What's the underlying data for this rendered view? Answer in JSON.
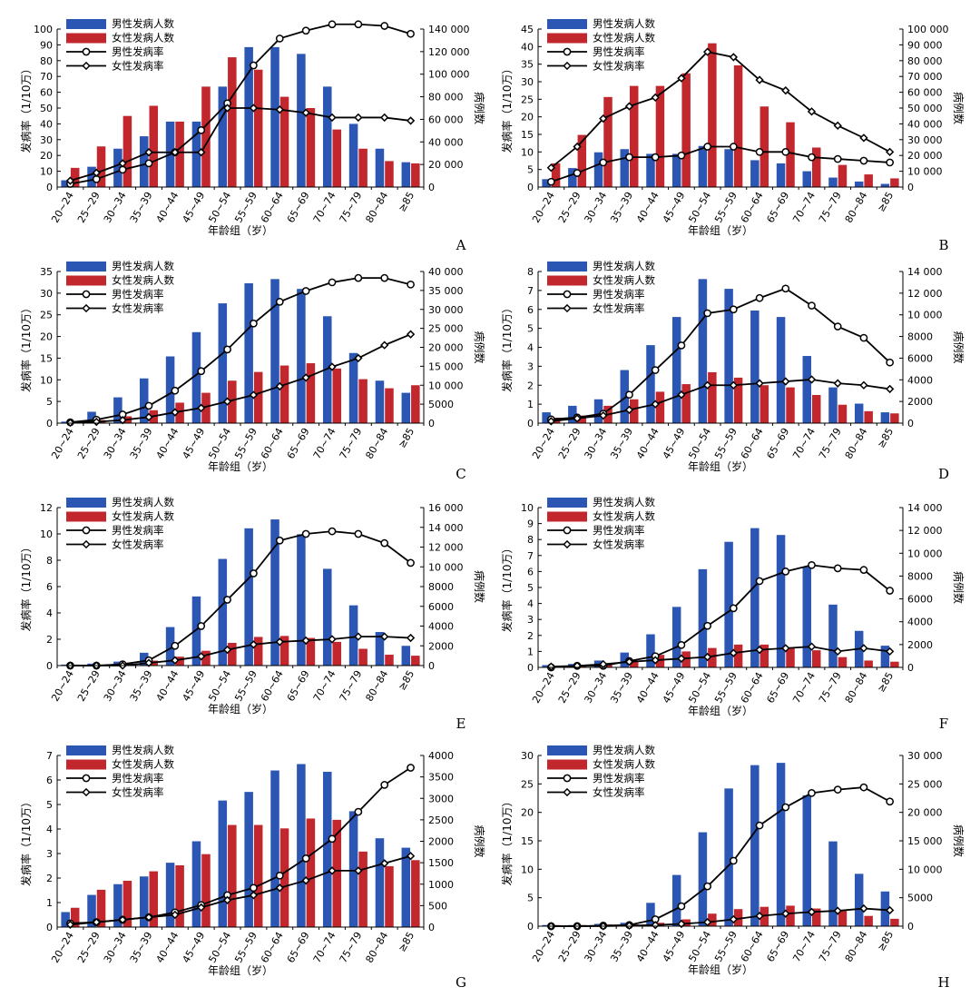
{
  "chart_data": [
    {
      "panel": "A",
      "type": "bar+line",
      "categories": [
        "20~24",
        "25~29",
        "30~34",
        "35~39",
        "40~44",
        "45~49",
        "50~54",
        "55~59",
        "60~64",
        "65~69",
        "70~74",
        "75~79",
        "80~84",
        "≥85"
      ],
      "xlabel": "年龄组（岁）",
      "ylabel": "发病率（1/10万）",
      "y2label": "病例数",
      "ylim": [
        0,
        100
      ],
      "yticks": [
        "0",
        "10",
        "20",
        "30",
        "40",
        "50",
        "60",
        "70",
        "80",
        "90",
        "100"
      ],
      "y2lim": [
        0,
        140000
      ],
      "y2ticks": [
        "0",
        "20 000",
        "40 000",
        "60 000",
        "80 000",
        "100 000",
        "120 000",
        "140 000"
      ],
      "series": [
        {
          "name": "男性发病人数",
          "kind": "bar",
          "axis": "right",
          "values": [
            6000,
            18000,
            34000,
            45000,
            58000,
            58000,
            89000,
            124000,
            124000,
            118000,
            89000,
            56000,
            34000,
            22000
          ]
        },
        {
          "name": "女性发病人数",
          "kind": "bar",
          "axis": "right",
          "values": [
            17000,
            36000,
            63000,
            72000,
            58000,
            89000,
            115000,
            104000,
            80000,
            70000,
            51000,
            34000,
            23000,
            21000
          ]
        },
        {
          "name": "男性发病率",
          "kind": "line",
          "marker": "circle",
          "axis": "left",
          "values": [
            2,
            5,
            11,
            15,
            22,
            36,
            53,
            77,
            94,
            99,
            103,
            103,
            102,
            97
          ]
        },
        {
          "name": "女性发病率",
          "kind": "line",
          "marker": "diamond",
          "axis": "left",
          "values": [
            4,
            9,
            15,
            22,
            22,
            22,
            50,
            50,
            49,
            47,
            44,
            44,
            44,
            42
          ]
        }
      ]
    },
    {
      "panel": "B",
      "type": "bar+line",
      "categories": [
        "20~24",
        "25~29",
        "30~34",
        "35~39",
        "40~44",
        "45~49",
        "50~54",
        "55~59",
        "60~64",
        "65~69",
        "70~74",
        "75~79",
        "80~84",
        "≥85"
      ],
      "xlabel": "年龄组（岁）",
      "ylabel": "发病率（1/10万）",
      "y2label": "病例数",
      "ylim": [
        0,
        45
      ],
      "yticks": [
        "0",
        "5",
        "10",
        "15",
        "20",
        "25",
        "30",
        "35",
        "40",
        "45"
      ],
      "y2lim": [
        0,
        100000
      ],
      "y2ticks": [
        "0",
        "10 000",
        "20 000",
        "30 000",
        "40 000",
        "50 000",
        "60 000",
        "70 000",
        "80 000",
        "90 000",
        "100 000"
      ],
      "series": [
        {
          "name": "男性发病人数",
          "kind": "bar",
          "axis": "right",
          "values": [
            5000,
            12000,
            22000,
            24000,
            21000,
            21000,
            26000,
            24000,
            17000,
            15000,
            10000,
            6000,
            3500,
            2000
          ]
        },
        {
          "name": "女性发病人数",
          "kind": "bar",
          "axis": "right",
          "values": [
            15000,
            33000,
            57000,
            64000,
            64000,
            72000,
            91000,
            77000,
            51000,
            41000,
            25000,
            14000,
            8000,
            5500
          ]
        },
        {
          "name": "男性发病率",
          "kind": "line",
          "marker": "circle",
          "axis": "left",
          "values": [
            1.5,
            4,
            7,
            8.5,
            8.5,
            9,
            11.5,
            11.5,
            10,
            10,
            8.5,
            8,
            7.5,
            7
          ]
        },
        {
          "name": "女性发病率",
          "kind": "line",
          "marker": "diamond",
          "axis": "left",
          "values": [
            5.5,
            11.5,
            19.5,
            23,
            25.5,
            31,
            38.5,
            37,
            30.5,
            27.5,
            21.5,
            17.5,
            14,
            10
          ]
        }
      ]
    },
    {
      "panel": "C",
      "type": "bar+line",
      "categories": [
        "20~24",
        "25~29",
        "30~34",
        "35~39",
        "40~44",
        "45~49",
        "50~54",
        "55~59",
        "60~64",
        "65~69",
        "70~74",
        "75~79",
        "80~84",
        "≥85"
      ],
      "xlabel": "年龄组（岁）",
      "ylabel": "发病率（1/10万）",
      "y2label": "病例数",
      "ylim": [
        0,
        35
      ],
      "yticks": [
        "0",
        "5",
        "10",
        "15",
        "20",
        "25",
        "30",
        "35"
      ],
      "y2lim": [
        0,
        40000
      ],
      "y2ticks": [
        "0",
        "5000",
        "10 000",
        "15 000",
        "20 000",
        "25 000",
        "30 000",
        "35 000",
        "40 000"
      ],
      "series": [
        {
          "name": "男性发病人数",
          "kind": "bar",
          "axis": "right",
          "values": [
            400,
            3000,
            6800,
            11800,
            17600,
            24000,
            31600,
            36900,
            38000,
            35400,
            28200,
            18500,
            11200,
            8000
          ]
        },
        {
          "name": "女性发病人数",
          "kind": "bar",
          "axis": "right",
          "values": [
            200,
            800,
            1800,
            3400,
            5400,
            8000,
            11200,
            13500,
            15200,
            15800,
            14400,
            11600,
            9200,
            10000
          ]
        },
        {
          "name": "男性发病率",
          "kind": "line",
          "marker": "circle",
          "axis": "left",
          "values": [
            0.2,
            0.8,
            2,
            4,
            7.5,
            12,
            17,
            23,
            28,
            30.5,
            32.5,
            33.5,
            33.5,
            32
          ]
        },
        {
          "name": "女性发病率",
          "kind": "line",
          "marker": "diamond",
          "axis": "left",
          "values": [
            0.1,
            0.3,
            0.7,
            1.4,
            2.5,
            3.5,
            5,
            6.5,
            8.5,
            10.5,
            13,
            15,
            18,
            20.5
          ]
        }
      ]
    },
    {
      "panel": "D",
      "type": "bar+line",
      "categories": [
        "20~24",
        "25~29",
        "30~34",
        "35~39",
        "40~44",
        "45~49",
        "50~54",
        "55~59",
        "60~64",
        "65~69",
        "70~74",
        "75~79",
        "80~84",
        "≥85"
      ],
      "xlabel": "年龄组（岁）",
      "ylabel": "发病率（1/10万）",
      "y2label": "病例数",
      "ylim": [
        0,
        8
      ],
      "yticks": [
        "0",
        "1",
        "2",
        "3",
        "4",
        "5",
        "6",
        "7",
        "8"
      ],
      "y2lim": [
        0,
        14000
      ],
      "y2ticks": [
        "0",
        "2000",
        "4000",
        "6000",
        "8000",
        "10 000",
        "12 000",
        "14 000"
      ],
      "series": [
        {
          "name": "男性发病人数",
          "kind": "bar",
          "axis": "right",
          "values": [
            1000,
            1600,
            2200,
            4900,
            7200,
            9800,
            13300,
            12400,
            10400,
            9800,
            6200,
            3300,
            1800,
            1000
          ]
        },
        {
          "name": "女性发病人数",
          "kind": "bar",
          "axis": "right",
          "values": [
            500,
            700,
            1600,
            2200,
            2900,
            3600,
            4700,
            4200,
            3500,
            3300,
            2600,
            1700,
            1100,
            900
          ]
        },
        {
          "name": "男性发病率",
          "kind": "line",
          "marker": "circle",
          "axis": "left",
          "values": [
            0.2,
            0.3,
            0.5,
            1.5,
            2.8,
            4.1,
            5.8,
            6,
            6.6,
            7.1,
            6.2,
            5.1,
            4.5,
            3.2
          ]
        },
        {
          "name": "女性发病率",
          "kind": "line",
          "marker": "diamond",
          "axis": "left",
          "values": [
            0.1,
            0.25,
            0.4,
            0.7,
            1,
            1.5,
            2,
            2,
            2.1,
            2.2,
            2.3,
            2.1,
            2,
            1.8
          ]
        }
      ]
    },
    {
      "panel": "E",
      "type": "bar+line",
      "categories": [
        "20~24",
        "25~29",
        "30~34",
        "35~39",
        "40~44",
        "45~49",
        "50~54",
        "55~59",
        "60~64",
        "65~69",
        "70~74",
        "75~79",
        "80~84",
        "≥85"
      ],
      "xlabel": "年龄组（岁）",
      "ylabel": "发病率（1/10万）",
      "y2label": "病例数",
      "ylim": [
        0,
        12
      ],
      "yticks": [
        "0",
        "2",
        "4",
        "6",
        "8",
        "10",
        "12"
      ],
      "y2lim": [
        0,
        16000
      ],
      "y2ticks": [
        "0",
        "2000",
        "4000",
        "6000",
        "8000",
        "10 000",
        "12 000",
        "14 000",
        "16 000"
      ],
      "series": [
        {
          "name": "男性发病人数",
          "kind": "bar",
          "axis": "right",
          "values": [
            100,
            200,
            400,
            1300,
            3900,
            7000,
            10800,
            13900,
            14800,
            13300,
            9800,
            6100,
            3400,
            2000
          ]
        },
        {
          "name": "女性发病人数",
          "kind": "bar",
          "axis": "right",
          "values": [
            100,
            100,
            300,
            500,
            900,
            1500,
            2300,
            2900,
            3000,
            2800,
            2400,
            1700,
            1100,
            1000
          ]
        },
        {
          "name": "男性发病率",
          "kind": "line",
          "marker": "circle",
          "axis": "left",
          "values": [
            0,
            0,
            0.1,
            0.4,
            1.5,
            3,
            5,
            7,
            9.5,
            10,
            10.2,
            10,
            9.3,
            7.8
          ]
        },
        {
          "name": "女性发病率",
          "kind": "line",
          "marker": "diamond",
          "axis": "left",
          "values": [
            0,
            0,
            0,
            0.2,
            0.4,
            0.7,
            1.2,
            1.6,
            1.8,
            1.9,
            2,
            2.2,
            2.2,
            2.1
          ]
        }
      ]
    },
    {
      "panel": "F",
      "type": "bar+line",
      "categories": [
        "20~24",
        "25~29",
        "30~34",
        "35~39",
        "40~44",
        "45~49",
        "50~54",
        "55~59",
        "60~64",
        "65~69",
        "70~74",
        "75~79",
        "80~84",
        "≥85"
      ],
      "xlabel": "年龄组（岁）",
      "ylabel": "发病率（1/10万）",
      "y2label": "病例数",
      "ylim": [
        0,
        10
      ],
      "yticks": [
        "0",
        "1",
        "2",
        "3",
        "4",
        "5",
        "6",
        "7",
        "8",
        "9",
        "10"
      ],
      "y2lim": [
        0,
        14000
      ],
      "y2ticks": [
        "0",
        "2000",
        "4000",
        "6000",
        "8000",
        "10 000",
        "12 000",
        "14 000"
      ],
      "series": [
        {
          "name": "男性发病人数",
          "kind": "bar",
          "axis": "right",
          "values": [
            200,
            300,
            600,
            1300,
            2900,
            5300,
            8600,
            11000,
            12200,
            11600,
            8800,
            5500,
            3200,
            1900
          ]
        },
        {
          "name": "女性发病人数",
          "kind": "bar",
          "axis": "right",
          "values": [
            100,
            100,
            200,
            600,
            1100,
            1400,
            1700,
            2000,
            2000,
            1700,
            1500,
            900,
            600,
            500
          ]
        },
        {
          "name": "男性发病率",
          "kind": "line",
          "marker": "circle",
          "axis": "left",
          "values": [
            0,
            0.1,
            0.1,
            0.4,
            0.7,
            1.4,
            2.6,
            3.7,
            5.4,
            6,
            6.4,
            6.2,
            6.1,
            4.8
          ]
        },
        {
          "name": "女性发病率",
          "kind": "line",
          "marker": "diamond",
          "axis": "left",
          "values": [
            0.05,
            0.1,
            0.2,
            0.35,
            0.45,
            0.55,
            0.65,
            0.9,
            1.1,
            1.2,
            1.3,
            1,
            1.2,
            1
          ]
        }
      ]
    },
    {
      "panel": "G",
      "type": "bar+line",
      "categories": [
        "20~24",
        "25~29",
        "30~34",
        "35~39",
        "40~44",
        "45~49",
        "50~54",
        "55~59",
        "60~64",
        "65~69",
        "70~74",
        "75~79",
        "80~84",
        "≥85"
      ],
      "xlabel": "年龄组（岁）",
      "ylabel": "发病率（1/10万）",
      "y2label": "病例数",
      "ylim": [
        0,
        7
      ],
      "yticks": [
        "0",
        "1",
        "2",
        "3",
        "4",
        "5",
        "6",
        "7"
      ],
      "y2lim": [
        0,
        4000
      ],
      "y2ticks": [
        "0",
        "500",
        "1000",
        "1500",
        "2000",
        "2500",
        "3000",
        "3500",
        "4000"
      ],
      "series": [
        {
          "name": "男性发病人数",
          "kind": "bar",
          "axis": "right",
          "values": [
            350,
            750,
            1000,
            1180,
            1500,
            2000,
            2950,
            3150,
            3650,
            3800,
            3620,
            2700,
            2070,
            1850
          ]
        },
        {
          "name": "女性发病人数",
          "kind": "bar",
          "axis": "right",
          "values": [
            450,
            870,
            1080,
            1300,
            1440,
            1700,
            2380,
            2380,
            2300,
            2530,
            2500,
            1760,
            1420,
            1560
          ]
        },
        {
          "name": "男性发病率",
          "kind": "line",
          "marker": "circle",
          "axis": "left",
          "values": [
            0.15,
            0.2,
            0.3,
            0.4,
            0.6,
            0.9,
            1.3,
            1.6,
            2.1,
            2.8,
            3.6,
            4.7,
            5.8,
            6.5
          ]
        },
        {
          "name": "女性发病率",
          "kind": "line",
          "marker": "diamond",
          "axis": "left",
          "values": [
            0.1,
            0.2,
            0.3,
            0.4,
            0.5,
            0.8,
            1.1,
            1.3,
            1.6,
            1.9,
            2.3,
            2.3,
            2.6,
            2.9
          ]
        }
      ]
    },
    {
      "panel": "H",
      "type": "bar+line",
      "categories": [
        "20~24",
        "25~29",
        "30~34",
        "35~39",
        "40~44",
        "45~49",
        "50~54",
        "55~59",
        "60~64",
        "65~69",
        "70~74",
        "75~79",
        "80~84",
        "≥85"
      ],
      "xlabel": "年龄组（岁）",
      "ylabel": "发病率（1/10万）",
      "y2label": "病例数",
      "ylim": [
        0,
        30
      ],
      "yticks": [
        "0",
        "5",
        "10",
        "15",
        "20",
        "25",
        "30"
      ],
      "y2lim": [
        0,
        30000
      ],
      "y2ticks": [
        "0",
        "5000",
        "10 000",
        "15 000",
        "20 000",
        "25 000",
        "30 000"
      ],
      "series": [
        {
          "name": "男性发病人数",
          "kind": "bar",
          "axis": "right",
          "values": [
            200,
            200,
            400,
            600,
            4100,
            9000,
            16500,
            24200,
            28300,
            28700,
            23000,
            14900,
            9200,
            6100
          ]
        },
        {
          "name": "女性发病人数",
          "kind": "bar",
          "axis": "right",
          "values": [
            200,
            200,
            300,
            300,
            600,
            1200,
            2200,
            3000,
            3400,
            3600,
            3100,
            2700,
            1800,
            1300
          ]
        },
        {
          "name": "男性发病率",
          "kind": "line",
          "marker": "circle",
          "axis": "left",
          "values": [
            0,
            0,
            0.1,
            0.2,
            1.2,
            3.5,
            7,
            11.5,
            17.7,
            20.9,
            23.4,
            24,
            24.4,
            21.9
          ]
        },
        {
          "name": "女性发病率",
          "kind": "line",
          "marker": "diamond",
          "axis": "left",
          "values": [
            0,
            0,
            0,
            0.1,
            0.2,
            0.4,
            0.7,
            1.2,
            1.8,
            2.2,
            2.5,
            2.7,
            3.1,
            2.8
          ]
        }
      ]
    }
  ],
  "colors": {
    "male_bar": "#2b56b3",
    "female_bar": "#c1272d",
    "line": "#000000"
  }
}
